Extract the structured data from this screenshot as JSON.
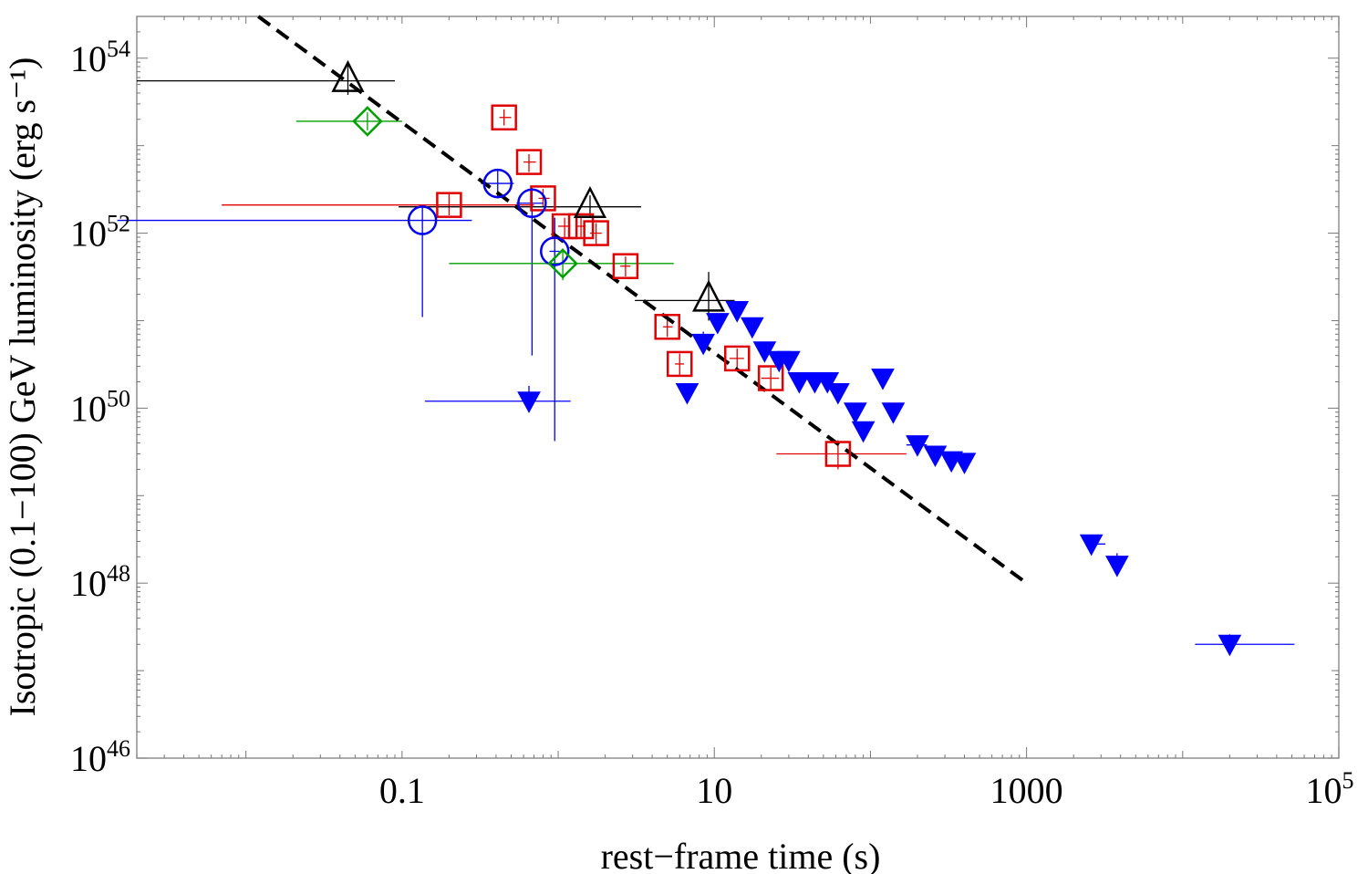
{
  "chart_data": {
    "type": "scatter",
    "title": "",
    "xlabel": "rest−frame  time (s)",
    "ylabel": "Isotropic  (0.1−100) GeV  luminosity  (erg s⁻¹)",
    "xscale": "log",
    "yscale": "log",
    "xlim": [
      0.002,
      100000
    ],
    "ylim": [
      1e+46,
      3e+54
    ],
    "x_ticks": [
      {
        "value": 0.1,
        "label": "0.1"
      },
      {
        "value": 10,
        "label": "10"
      },
      {
        "value": 1000,
        "label": "1000"
      },
      {
        "value": 100000,
        "base": "10",
        "exp": "5"
      }
    ],
    "y_ticks": [
      {
        "value": 1e+46,
        "base": "10",
        "exp": "46"
      },
      {
        "value": 1e+48,
        "base": "10",
        "exp": "48"
      },
      {
        "value": 1e+50,
        "base": "10",
        "exp": "50"
      },
      {
        "value": 1e+52,
        "base": "10",
        "exp": "52"
      },
      {
        "value": 1e+54,
        "base": "10",
        "exp": "54"
      }
    ],
    "fit_line": {
      "name": "power-law fit",
      "style": "dashed",
      "color": "#000000",
      "points": [
        [
          0.012,
          3e+54
        ],
        [
          1000,
          1e+48
        ]
      ]
    },
    "series": [
      {
        "name": "red squares",
        "marker": "square",
        "color": "#e00000",
        "points": [
          {
            "x": 0.2,
            "y": 2.1e+52,
            "xerr": [
              0.007,
              0.7
            ],
            "yerr": [
              1.6e+52,
              2.8e+52
            ]
          },
          {
            "x": 0.45,
            "y": 2.1e+53,
            "xerr": [
              0.42,
              0.5
            ],
            "yerr": [
              1.7e+53,
              2.6e+53
            ]
          },
          {
            "x": 0.65,
            "y": 6.5e+52,
            "xerr": [
              0.6,
              0.72
            ],
            "yerr": [
              5e+52,
              8e+52
            ]
          },
          {
            "x": 0.8,
            "y": 2.5e+52,
            "xerr": [
              0.75,
              0.88
            ],
            "yerr": [
              2e+52,
              3.2e+52
            ]
          },
          {
            "x": 1.1,
            "y": 1.2e+52,
            "xerr": [
              1.0,
              1.2
            ],
            "yerr": [
              9e+51,
              1.5e+52
            ]
          },
          {
            "x": 1.4,
            "y": 1.2e+52,
            "xerr": [
              1.3,
              1.5
            ],
            "yerr": [
              9e+51,
              1.5e+52
            ]
          },
          {
            "x": 1.75,
            "y": 1e+52,
            "xerr": [
              1.6,
              1.9
            ],
            "yerr": [
              7.5e+51,
              1.3e+52
            ]
          },
          {
            "x": 2.7,
            "y": 4.2e+51,
            "xerr": [
              2.5,
              2.9
            ],
            "yerr": [
              3.2e+51,
              5.4e+51
            ]
          },
          {
            "x": 5.0,
            "y": 8.5e+50,
            "xerr": [
              4.7,
              5.4
            ],
            "yerr": [
              6.5e+50,
              1.1e+51
            ]
          },
          {
            "x": 6.0,
            "y": 3.2e+50,
            "xerr": [
              5.6,
              6.4
            ],
            "yerr": [
              2.4e+50,
              4.2e+50
            ]
          },
          {
            "x": 14,
            "y": 3.7e+50,
            "xerr": [
              12.5,
              15.5
            ],
            "yerr": [
              2.8e+50,
              4.8e+50
            ]
          },
          {
            "x": 23,
            "y": 2.2e+50,
            "xerr": [
              20,
              26
            ],
            "yerr": [
              1.6e+50,
              2.9e+50
            ]
          },
          {
            "x": 62,
            "y": 3e+49,
            "xerr": [
              25,
              170
            ],
            "yerr": [
              2e+49,
              4.3e+49
            ]
          }
        ]
      },
      {
        "name": "blue circles",
        "marker": "circle",
        "color": "#0000ee",
        "points": [
          {
            "x": 0.135,
            "y": 1.4e+52,
            "xerr": [
              0.0015,
              0.28
            ],
            "yerr": [
              1.1e+51,
              2e+52
            ]
          },
          {
            "x": 0.41,
            "y": 3.7e+52,
            "xerr": [
              0.32,
              0.52
            ],
            "yerr": [
              2.5e+52,
              5.4e+52
            ]
          },
          {
            "x": 0.68,
            "y": 2.2e+52,
            "xerr": [
              0.54,
              0.8
            ],
            "yerr": [
              4e+50,
              3.3e+52
            ]
          },
          {
            "x": 0.95,
            "y": 6.2e+51,
            "xerr": [
              0.88,
              1.02
            ],
            "yerr": [
              4.2e+49,
              1.5e+52
            ]
          }
        ]
      },
      {
        "name": "green diamonds",
        "marker": "diamond",
        "color": "#00a000",
        "points": [
          {
            "x": 0.06,
            "y": 1.9e+53,
            "xerr": [
              0.021,
              0.1
            ],
            "yerr": [
              1.5e+53,
              2.4e+53
            ]
          },
          {
            "x": 1.07,
            "y": 4.5e+51,
            "xerr": [
              0.2,
              5.5
            ],
            "yerr": [
              2.9e+51,
              6.2e+51
            ]
          }
        ]
      },
      {
        "name": "black triangles",
        "marker": "triangle-up",
        "color": "#000000",
        "points": [
          {
            "x": 0.045,
            "y": 5.5e+53,
            "xerr": [
              0.002,
              0.09
            ],
            "yerr": [
              3.8e+53,
              9.2e+53
            ]
          },
          {
            "x": 1.6,
            "y": 2e+52,
            "xerr": [
              0.095,
              3.4
            ],
            "yerr": [
              1.5e+52,
              2.7e+52
            ]
          },
          {
            "x": 9.2,
            "y": 1.7e+51,
            "xerr": [
              3.1,
              13.5
            ],
            "yerr": [
              1e+51,
              3.6e+51
            ]
          }
        ]
      },
      {
        "name": "blue filled triangles",
        "marker": "triangle-down-filled",
        "color": "#0000ff",
        "points": [
          {
            "x": 0.65,
            "y": 1.2e+50,
            "xerr": [
              0.14,
              1.2
            ],
            "yerr": [
              9e+49,
              1.8e+50
            ]
          },
          {
            "x": 6.7,
            "y": 1.5e+50
          },
          {
            "x": 8.5,
            "y": 5.5e+50,
            "yerr": [
              4.2e+50,
              7.5e+50
            ]
          },
          {
            "x": 10.5,
            "y": 9.5e+50
          },
          {
            "x": 14.0,
            "y": 1.3e+51
          },
          {
            "x": 17.5,
            "y": 8.5e+50
          },
          {
            "x": 21.0,
            "y": 4.5e+50
          },
          {
            "x": 26.0,
            "y": 3.5e+50
          },
          {
            "x": 30.0,
            "y": 3.5e+50
          },
          {
            "x": 35.0,
            "y": 2e+50
          },
          {
            "x": 44.0,
            "y": 2e+50
          },
          {
            "x": 53.0,
            "y": 2e+50
          },
          {
            "x": 62.0,
            "y": 1.5e+50
          },
          {
            "x": 80.0,
            "y": 9e+49
          },
          {
            "x": 90.0,
            "y": 5.5e+49
          },
          {
            "x": 120.0,
            "y": 2.2e+50
          },
          {
            "x": 140.0,
            "y": 9e+49
          },
          {
            "x": 200.0,
            "y": 3.8e+49,
            "xerr": [
              170,
              230
            ]
          },
          {
            "x": 260.0,
            "y": 2.9e+49
          },
          {
            "x": 330.0,
            "y": 2.5e+49
          },
          {
            "x": 400.0,
            "y": 2.4e+49
          },
          {
            "x": 2600.0,
            "y": 2.8e+48,
            "xerr": [
              2400,
              3200
            ]
          },
          {
            "x": 3800.0,
            "y": 1.6e+48,
            "yerr": [
              1.2e+48,
              2.2e+48
            ]
          },
          {
            "x": 20000.0,
            "y": 2e+47,
            "xerr": [
              12000,
              52000
            ],
            "yerr": [
              1.5e+47,
              2.6e+47
            ]
          }
        ]
      }
    ]
  }
}
